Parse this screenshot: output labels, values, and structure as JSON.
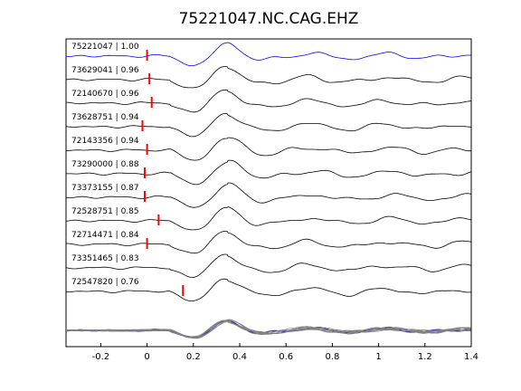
{
  "chart_data": {
    "type": "line",
    "title": "75221047.NC.CAG.EHZ",
    "xlabel": "",
    "ylabel": "",
    "xlim": [
      -0.35,
      1.4
    ],
    "xticks": [
      -0.2,
      0,
      0.2,
      0.4,
      0.6,
      0.8,
      1,
      1.2,
      1.4
    ],
    "xtick_labels": [
      "-0.2",
      "0",
      "0.2",
      "0.4",
      "0.6",
      "0.8",
      "1",
      "1.2",
      "1.4"
    ],
    "grid": false,
    "colors": {
      "reference": "#0000ff",
      "trace": "#000000",
      "pick": "#ff0000",
      "stack": "#808080"
    },
    "traces": [
      {
        "label": "75221047 | 1.00",
        "pick_time": 0.0,
        "reference": true
      },
      {
        "label": "73629041 | 0.96",
        "pick_time": 0.01
      },
      {
        "label": "72140670 | 0.96",
        "pick_time": 0.02
      },
      {
        "label": "73628751 | 0.94",
        "pick_time": -0.02
      },
      {
        "label": "72143356 | 0.94",
        "pick_time": 0.0
      },
      {
        "label": "73290000 | 0.88",
        "pick_time": -0.01
      },
      {
        "label": "73373155 | 0.87",
        "pick_time": -0.01
      },
      {
        "label": "72528751 | 0.85",
        "pick_time": 0.05
      },
      {
        "label": "72714471 | 0.84",
        "pick_time": 0.0
      },
      {
        "label": "73351465 | 0.83",
        "pick_time": null
      },
      {
        "label": "72547820 | 0.76",
        "pick_time": 0.155
      }
    ],
    "stack": {
      "label": "",
      "count": 11
    }
  }
}
